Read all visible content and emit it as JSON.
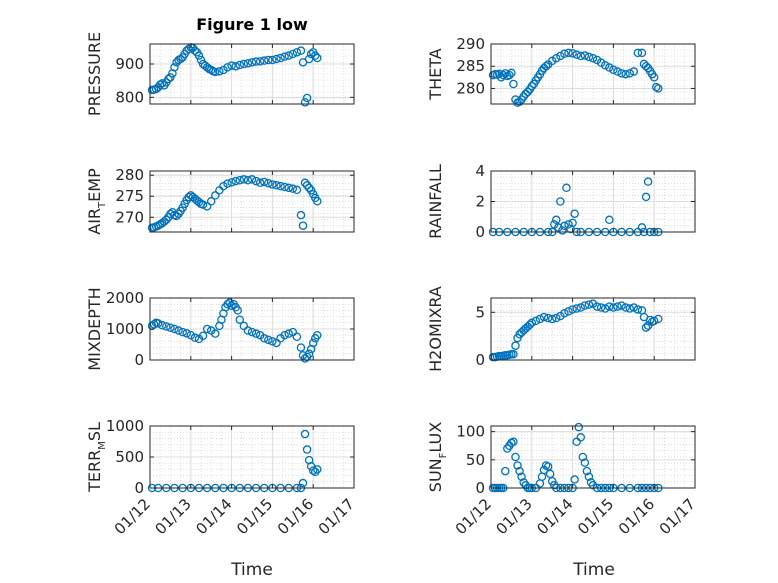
{
  "figure": {
    "title": "Figure 1 low",
    "xlabel": "Time",
    "x_ticks": [
      "01/12",
      "01/13",
      "01/14",
      "01/15",
      "01/16",
      "01/17"
    ],
    "marker_color": "#0072BD"
  },
  "chart_data": [
    {
      "type": "scatter",
      "ylabel": "PRESSURE",
      "ylim": [
        780,
        960
      ],
      "yticks": [
        800,
        900
      ],
      "grid": true,
      "x": [
        12.05,
        12.1,
        12.15,
        12.2,
        12.25,
        12.3,
        12.35,
        12.4,
        12.45,
        12.5,
        12.55,
        12.6,
        12.65,
        12.7,
        12.75,
        12.8,
        12.85,
        12.9,
        12.95,
        13.0,
        13.05,
        13.1,
        13.15,
        13.2,
        13.25,
        13.3,
        13.35,
        13.4,
        13.45,
        13.5,
        13.55,
        13.6,
        13.7,
        13.8,
        13.9,
        14.0,
        14.1,
        14.2,
        14.3,
        14.4,
        14.5,
        14.6,
        14.7,
        14.8,
        14.9,
        15.0,
        15.1,
        15.2,
        15.3,
        15.4,
        15.5,
        15.6,
        15.7,
        15.75,
        15.8,
        15.85,
        15.9,
        15.95,
        16.0,
        16.05,
        16.1
      ],
      "y": [
        822,
        823,
        825,
        830,
        838,
        842,
        836,
        845,
        855,
        860,
        872,
        890,
        905,
        912,
        915,
        920,
        930,
        940,
        945,
        950,
        948,
        940,
        935,
        925,
        912,
        900,
        895,
        890,
        885,
        882,
        878,
        876,
        878,
        882,
        890,
        895,
        893,
        897,
        900,
        902,
        905,
        907,
        908,
        910,
        912,
        912,
        915,
        918,
        922,
        925,
        930,
        935,
        940,
        905,
        785,
        798,
        915,
        930,
        935,
        925,
        918
      ]
    },
    {
      "type": "scatter",
      "ylabel": "THETA",
      "ylim": [
        276.5,
        290
      ],
      "yticks": [
        280,
        285,
        290
      ],
      "grid": true,
      "x": [
        12.05,
        12.1,
        12.15,
        12.2,
        12.25,
        12.3,
        12.35,
        12.4,
        12.45,
        12.5,
        12.55,
        12.6,
        12.65,
        12.7,
        12.75,
        12.8,
        12.85,
        12.9,
        12.95,
        13.0,
        13.05,
        13.1,
        13.15,
        13.2,
        13.25,
        13.3,
        13.35,
        13.4,
        13.5,
        13.6,
        13.7,
        13.8,
        13.9,
        14.0,
        14.1,
        14.2,
        14.3,
        14.4,
        14.5,
        14.6,
        14.7,
        14.8,
        14.9,
        15.0,
        15.1,
        15.2,
        15.3,
        15.4,
        15.5,
        15.6,
        15.7,
        15.75,
        15.8,
        15.85,
        15.9,
        15.95,
        16.0,
        16.05,
        16.1
      ],
      "y": [
        283,
        283.2,
        283.1,
        283.3,
        282.5,
        283,
        283.4,
        282.8,
        283,
        283.5,
        281,
        277.5,
        276.8,
        277,
        277.5,
        278.2,
        278.8,
        279.2,
        279.8,
        280.5,
        281,
        281.8,
        282.5,
        283.2,
        284,
        284.6,
        285,
        285.4,
        286.2,
        286.8,
        287.3,
        287.8,
        288,
        287.9,
        287.6,
        287.3,
        287.4,
        287.1,
        286.8,
        286.4,
        285.8,
        285.2,
        284.7,
        284.2,
        283.8,
        283.4,
        283.2,
        283.4,
        283.8,
        288,
        288,
        285.5,
        285,
        284.6,
        283.9,
        283.2,
        282.5,
        280.3,
        280
      ]
    },
    {
      "type": "scatter",
      "ylabel": "AIR_TEMP",
      "ylabel_main": "AIR",
      "ylabel_sub": "T",
      "ylabel_rest": "EMP",
      "ylim": [
        266.5,
        281
      ],
      "yticks": [
        270,
        275,
        280
      ],
      "grid": true,
      "x": [
        12.05,
        12.1,
        12.15,
        12.2,
        12.25,
        12.3,
        12.35,
        12.4,
        12.45,
        12.5,
        12.55,
        12.6,
        12.65,
        12.7,
        12.75,
        12.8,
        12.85,
        12.9,
        12.95,
        13.0,
        13.05,
        13.1,
        13.15,
        13.2,
        13.25,
        13.3,
        13.4,
        13.5,
        13.6,
        13.7,
        13.8,
        13.9,
        14.0,
        14.1,
        14.2,
        14.3,
        14.4,
        14.5,
        14.6,
        14.7,
        14.8,
        14.9,
        15.0,
        15.1,
        15.2,
        15.3,
        15.4,
        15.5,
        15.6,
        15.7,
        15.75,
        15.8,
        15.85,
        15.9,
        15.95,
        16.0,
        16.05,
        16.1
      ],
      "y": [
        267.5,
        267.6,
        267.8,
        268,
        268.3,
        268.6,
        269,
        269.4,
        270,
        270.8,
        271.2,
        270.5,
        270.3,
        270.8,
        271.5,
        272.3,
        273.2,
        274.1,
        274.8,
        275.2,
        274.8,
        274.4,
        274.0,
        273.6,
        273.2,
        273,
        272.6,
        273.8,
        275.2,
        276.4,
        277.4,
        278,
        278.3,
        278.6,
        278.8,
        279,
        278.8,
        279,
        278.6,
        278.2,
        278.4,
        278.1,
        277.8,
        277.6,
        277.4,
        277.2,
        277.0,
        276.8,
        276.5,
        270.5,
        268,
        278.2,
        277.6,
        277.0,
        276.4,
        275.5,
        274.6,
        273.8
      ]
    },
    {
      "type": "scatter",
      "ylabel": "RAINFALL",
      "ylim": [
        0,
        4
      ],
      "yticks": [
        0,
        2,
        4
      ],
      "grid": true,
      "x": [
        12.05,
        12.2,
        12.4,
        12.6,
        12.8,
        13.0,
        13.2,
        13.4,
        13.5,
        13.55,
        13.6,
        13.65,
        13.7,
        13.75,
        13.8,
        13.85,
        13.9,
        13.95,
        14.0,
        14.05,
        14.1,
        14.2,
        14.4,
        14.6,
        14.8,
        14.9,
        15.0,
        15.2,
        15.4,
        15.6,
        15.7,
        15.75,
        15.8,
        15.85,
        15.9,
        16.0,
        16.1
      ],
      "y": [
        0,
        0,
        0,
        0,
        0,
        0,
        0,
        0,
        0,
        0.5,
        0.8,
        0.3,
        2.0,
        0.1,
        0.4,
        2.9,
        0.5,
        0.2,
        0.6,
        1.2,
        0,
        0,
        0,
        0,
        0,
        0.8,
        0,
        0,
        0,
        0,
        0.3,
        0,
        2.3,
        3.3,
        0,
        0,
        0
      ]
    },
    {
      "type": "scatter",
      "ylabel": "MIXDEPTH",
      "ylim": [
        0,
        2000
      ],
      "yticks": [
        0,
        1000,
        2000
      ],
      "grid": true,
      "x": [
        12.05,
        12.1,
        12.15,
        12.2,
        12.3,
        12.4,
        12.5,
        12.6,
        12.7,
        12.8,
        12.9,
        13.0,
        13.1,
        13.2,
        13.3,
        13.4,
        13.5,
        13.6,
        13.7,
        13.75,
        13.8,
        13.85,
        13.9,
        13.95,
        14.0,
        14.05,
        14.1,
        14.15,
        14.2,
        14.3,
        14.4,
        14.5,
        14.6,
        14.7,
        14.8,
        14.9,
        15.0,
        15.1,
        15.2,
        15.3,
        15.4,
        15.5,
        15.6,
        15.7,
        15.75,
        15.8,
        15.85,
        15.9,
        15.95,
        16.0,
        16.05,
        16.1
      ],
      "y": [
        1100,
        1150,
        1200,
        1180,
        1120,
        1080,
        1040,
        1000,
        950,
        900,
        860,
        800,
        720,
        680,
        780,
        1000,
        950,
        850,
        1100,
        1300,
        1500,
        1700,
        1800,
        1850,
        1750,
        1800,
        1700,
        1600,
        1300,
        1100,
        950,
        900,
        850,
        800,
        700,
        650,
        600,
        550,
        700,
        800,
        850,
        900,
        750,
        400,
        150,
        50,
        100,
        200,
        350,
        550,
        700,
        800
      ]
    },
    {
      "type": "scatter",
      "ylabel": "H2OMIXRA",
      "ylim": [
        0,
        6.5
      ],
      "yticks": [
        0,
        5
      ],
      "grid": true,
      "x": [
        12.05,
        12.1,
        12.15,
        12.2,
        12.25,
        12.3,
        12.35,
        12.4,
        12.45,
        12.5,
        12.55,
        12.6,
        12.65,
        12.7,
        12.75,
        12.8,
        12.85,
        12.9,
        12.95,
        13.0,
        13.1,
        13.2,
        13.3,
        13.4,
        13.5,
        13.6,
        13.7,
        13.8,
        13.9,
        14.0,
        14.1,
        14.2,
        14.3,
        14.4,
        14.5,
        14.6,
        14.7,
        14.8,
        14.9,
        15.0,
        15.1,
        15.2,
        15.3,
        15.4,
        15.5,
        15.6,
        15.7,
        15.75,
        15.8,
        15.85,
        15.9,
        15.95,
        16.0,
        16.1
      ],
      "y": [
        0.3,
        0.3,
        0.35,
        0.4,
        0.4,
        0.45,
        0.5,
        0.5,
        0.55,
        0.6,
        0.6,
        1.5,
        2.3,
        2.7,
        2.9,
        3.1,
        3.3,
        3.5,
        3.7,
        3.9,
        4.1,
        4.3,
        4.5,
        4.4,
        4.3,
        4.4,
        4.6,
        4.9,
        5.1,
        5.3,
        5.4,
        5.5,
        5.7,
        5.8,
        5.9,
        5.6,
        5.5,
        5.4,
        5.6,
        5.5,
        5.6,
        5.7,
        5.5,
        5.4,
        5.5,
        5.3,
        5.2,
        4.5,
        3.4,
        3.6,
        4.2,
        4.0,
        4.1,
        4.3
      ]
    },
    {
      "type": "scatter",
      "ylabel": "TERR_MSL",
      "ylabel_main": "TERR",
      "ylabel_sub": "M",
      "ylabel_rest": "SL",
      "ylim": [
        0,
        1000
      ],
      "yticks": [
        0,
        500,
        1000
      ],
      "grid": true,
      "x": [
        12.05,
        12.2,
        12.4,
        12.6,
        12.8,
        13.0,
        13.2,
        13.4,
        13.6,
        13.8,
        14.0,
        14.2,
        14.4,
        14.6,
        14.8,
        15.0,
        15.2,
        15.4,
        15.6,
        15.7,
        15.75,
        15.8,
        15.85,
        15.9,
        15.95,
        16.0,
        16.05,
        16.1
      ],
      "y": [
        0,
        0,
        0,
        0,
        0,
        0,
        0,
        0,
        0,
        0,
        0,
        0,
        0,
        0,
        0,
        0,
        0,
        0,
        0,
        0,
        80,
        870,
        620,
        450,
        350,
        280,
        260,
        300
      ]
    },
    {
      "type": "scatter",
      "ylabel": "SUN_FLUX",
      "ylabel_main": "SUN",
      "ylabel_sub": "F",
      "ylabel_rest": "LUX",
      "ylim": [
        0,
        110
      ],
      "yticks": [
        0,
        50,
        100
      ],
      "grid": true,
      "x": [
        12.05,
        12.1,
        12.15,
        12.2,
        12.25,
        12.3,
        12.35,
        12.4,
        12.45,
        12.5,
        12.55,
        12.6,
        12.65,
        12.7,
        12.75,
        12.8,
        12.85,
        12.9,
        12.95,
        13.0,
        13.1,
        13.2,
        13.25,
        13.3,
        13.35,
        13.4,
        13.45,
        13.5,
        13.55,
        13.6,
        13.7,
        13.8,
        13.9,
        14.0,
        14.05,
        14.1,
        14.15,
        14.2,
        14.25,
        14.3,
        14.35,
        14.4,
        14.45,
        14.5,
        14.6,
        14.7,
        14.8,
        14.9,
        15.0,
        15.2,
        15.4,
        15.6,
        15.7,
        15.8,
        15.9,
        16.0,
        16.1
      ],
      "y": [
        0,
        0,
        0,
        0,
        0,
        0,
        30,
        70,
        75,
        80,
        82,
        55,
        40,
        30,
        20,
        10,
        5,
        0,
        0,
        0,
        0,
        8,
        20,
        32,
        40,
        38,
        25,
        12,
        5,
        0,
        0,
        0,
        0,
        0,
        15,
        82,
        108,
        90,
        55,
        45,
        30,
        20,
        10,
        5,
        0,
        0,
        0,
        0,
        0,
        0,
        0,
        0,
        0,
        0,
        0,
        0,
        0
      ]
    }
  ]
}
